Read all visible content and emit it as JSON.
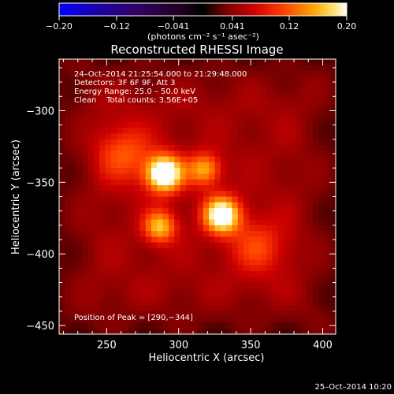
{
  "chart_data": {
    "type": "heatmap",
    "title": "Reconstructed RHESSI Image",
    "xlabel": "Heliocentric X (arcsec)",
    "ylabel": "Heliocentric Y (arcsec)",
    "xlim": [
      217,
      409
    ],
    "ylim": [
      -456,
      -264
    ],
    "x_ticks": [
      250,
      300,
      350,
      400
    ],
    "y_ticks": [
      -300,
      -350,
      -400,
      -450
    ],
    "x_tick_labels": [
      "250",
      "300",
      "350",
      "400"
    ],
    "y_tick_labels": [
      "−300",
      "−350",
      "−400",
      "−450"
    ],
    "colorbar": {
      "range": [
        -0.2,
        0.2
      ],
      "ticks": [
        -0.2,
        -0.12,
        -0.041,
        0.041,
        0.12,
        0.2
      ],
      "tick_labels": [
        "−0.20",
        "−0.12",
        "−0.041",
        "0.041",
        "0.12",
        "0.20"
      ],
      "unit_label": "(photons cm⁻² s⁻¹ asec⁻²)"
    },
    "annotations": [
      "24–Oct–2014 21:25:54.000 to 21:29:48.000",
      "Detectors: 3F 6F 9F, Att 3",
      "Energy Range: 25.0 – 50.0 keV",
      "Clean    Total counts: 3.56E+05"
    ],
    "peak_label": "Position of Peak = [290,−344]",
    "peak": [
      290,
      -344
    ],
    "sources": [
      {
        "x": 290,
        "y": -344,
        "amp": 0.2,
        "sigma": 9
      },
      {
        "x": 330,
        "y": -373,
        "amp": 0.18,
        "sigma": 9
      },
      {
        "x": 287,
        "y": -381,
        "amp": 0.12,
        "sigma": 8
      },
      {
        "x": 318,
        "y": -341,
        "amp": 0.11,
        "sigma": 8
      },
      {
        "x": 262,
        "y": -330,
        "amp": 0.07,
        "sigma": 14
      },
      {
        "x": 355,
        "y": -395,
        "amp": 0.06,
        "sigma": 14
      }
    ],
    "background_level": 0.05,
    "grid": false,
    "legend": "none"
  },
  "footer": {
    "timestamp": "25–Oct–2014 10:20"
  }
}
